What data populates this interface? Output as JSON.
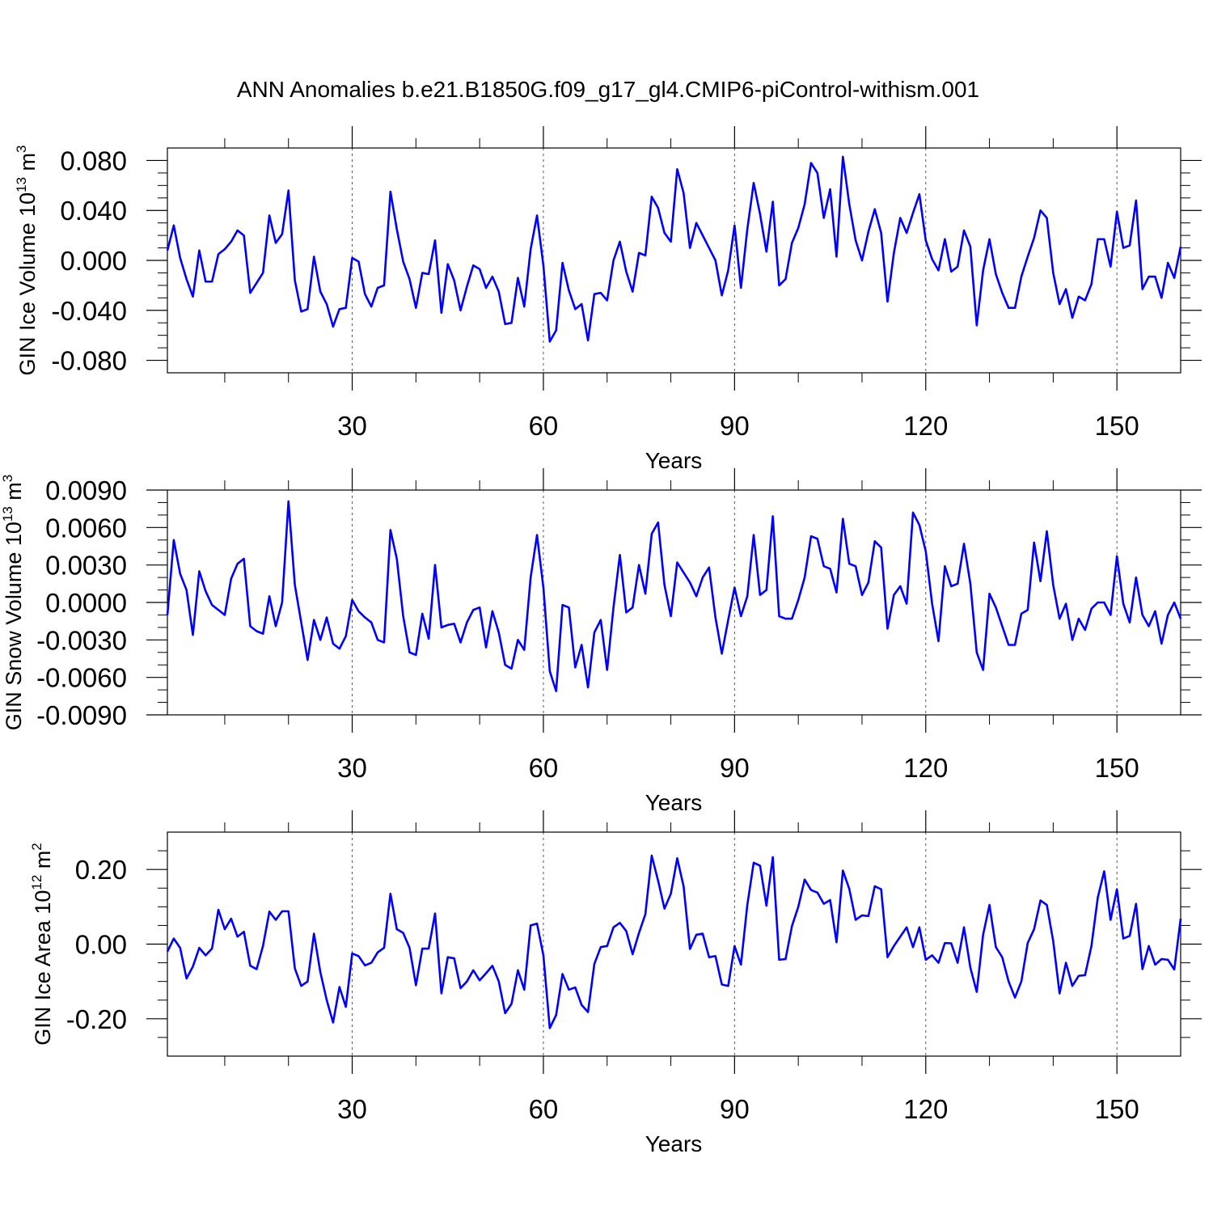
{
  "title": "ANN Anomalies b.e21.B1850G.f09_g17_gl4.CMIP6-piControl-withism.001",
  "line_color": "#0000ff",
  "chart_data": [
    {
      "type": "line",
      "ylabel_main": "GIN Ice Volume 10",
      "ylabel_exp": "13",
      "ylabel_unit": " m",
      "ylabel_unit_exp": "3",
      "xlabel": "Years",
      "xlim": [
        1,
        160
      ],
      "ylim": [
        -0.09,
        0.09
      ],
      "xticks": [
        30,
        60,
        90,
        120,
        150
      ],
      "xtick_labels": [
        "30",
        "60",
        "90",
        "120",
        "150"
      ],
      "yticks": [
        -0.08,
        -0.04,
        0.0,
        0.04,
        0.08
      ],
      "ytick_labels": [
        "-0.080",
        "-0.040",
        "0.000",
        "0.040",
        "0.080"
      ],
      "yminor": [
        -0.07,
        -0.06,
        -0.05,
        -0.03,
        -0.02,
        -0.01,
        0.01,
        0.02,
        0.03,
        0.05,
        0.06,
        0.07
      ],
      "series": [
        {
          "name": "GIN Ice Volume",
          "x_start": 1,
          "values": [
            0.008,
            0.028,
            0.002,
            -0.015,
            -0.029,
            0.008,
            -0.017,
            -0.017,
            0.005,
            0.009,
            0.015,
            0.024,
            0.02,
            -0.026,
            -0.018,
            -0.01,
            0.036,
            0.014,
            0.021,
            0.056,
            -0.016,
            -0.041,
            -0.039,
            0.003,
            -0.025,
            -0.035,
            -0.053,
            -0.039,
            -0.038,
            0.002,
            -0.001,
            -0.027,
            -0.037,
            -0.022,
            -0.02,
            0.055,
            0.025,
            -0.001,
            -0.015,
            -0.038,
            -0.01,
            -0.011,
            0.016,
            -0.042,
            -0.003,
            -0.016,
            -0.04,
            -0.021,
            -0.004,
            -0.007,
            -0.022,
            -0.013,
            -0.025,
            -0.051,
            -0.05,
            -0.014,
            -0.037,
            0.009,
            0.036,
            -0.004,
            -0.065,
            -0.056,
            -0.002,
            -0.024,
            -0.039,
            -0.035,
            -0.064,
            -0.027,
            -0.026,
            -0.032,
            0.0,
            0.015,
            -0.009,
            -0.025,
            0.006,
            0.004,
            0.051,
            0.042,
            0.022,
            0.015,
            0.073,
            0.054,
            0.01,
            0.03,
            0.02,
            0.01,
            0.0,
            -0.028,
            -0.008,
            0.028,
            -0.022,
            0.025,
            0.062,
            0.037,
            0.007,
            0.047,
            -0.02,
            -0.015,
            0.014,
            0.026,
            0.045,
            0.078,
            0.07,
            0.034,
            0.057,
            0.003,
            0.083,
            0.045,
            0.016,
            0.0,
            0.023,
            0.041,
            0.022,
            -0.033,
            0.006,
            0.034,
            0.022,
            0.038,
            0.053,
            0.016,
            0.001,
            -0.008,
            0.017,
            -0.009,
            -0.005,
            0.024,
            0.011,
            -0.052,
            -0.008,
            0.017,
            -0.011,
            -0.026,
            -0.038,
            -0.038,
            -0.013,
            0.003,
            0.018,
            0.04,
            0.034,
            -0.01,
            -0.035,
            -0.023,
            -0.046,
            -0.029,
            -0.032,
            -0.019,
            0.017,
            0.017,
            -0.005,
            0.039,
            0.01,
            0.012,
            0.048,
            -0.023,
            -0.013,
            -0.013,
            -0.03,
            -0.002,
            -0.014,
            0.011
          ]
        }
      ]
    },
    {
      "type": "line",
      "ylabel_main": "GIN Snow Volume 10",
      "ylabel_exp": "13",
      "ylabel_unit": " m",
      "ylabel_unit_exp": "3",
      "xlabel": "Years",
      "xlim": [
        1,
        160
      ],
      "ylim": [
        -0.009,
        0.009
      ],
      "xticks": [
        30,
        60,
        90,
        120,
        150
      ],
      "xtick_labels": [
        "30",
        "60",
        "90",
        "120",
        "150"
      ],
      "yticks": [
        -0.009,
        -0.006,
        -0.003,
        0.0,
        0.003,
        0.006,
        0.009
      ],
      "ytick_labels": [
        "-0.0090",
        "-0.0060",
        "-0.0030",
        "0.0000",
        "0.0030",
        "0.0060",
        "0.0090"
      ],
      "yminor": [
        -0.008,
        -0.007,
        -0.005,
        -0.004,
        -0.002,
        -0.001,
        0.001,
        0.002,
        0.004,
        0.005,
        0.007,
        0.008
      ],
      "series": [
        {
          "name": "GIN Snow Volume",
          "x_start": 1,
          "values": [
            -0.001,
            0.005,
            0.0023,
            0.001,
            -0.0026,
            0.0025,
            0.0009,
            -0.0002,
            -0.0006,
            -0.001,
            0.0019,
            0.0031,
            0.0035,
            -0.0019,
            -0.0023,
            -0.0025,
            0.0005,
            -0.0019,
            0.0,
            0.0081,
            0.0014,
            -0.0016,
            -0.0046,
            -0.0014,
            -0.003,
            -0.0012,
            -0.0033,
            -0.0037,
            -0.0027,
            0.0002,
            -0.0007,
            -0.0012,
            -0.0016,
            -0.003,
            -0.0032,
            0.0058,
            0.0035,
            -0.0011,
            -0.004,
            -0.0042,
            -0.0009,
            -0.0029,
            0.003,
            -0.002,
            -0.0018,
            -0.0017,
            -0.0032,
            -0.0016,
            -0.0006,
            -0.0004,
            -0.0036,
            -0.0007,
            -0.0024,
            -0.005,
            -0.0053,
            -0.003,
            -0.0038,
            0.002,
            0.0054,
            0.0012,
            -0.0055,
            -0.0071,
            -0.0002,
            -0.0004,
            -0.0052,
            -0.0034,
            -0.0068,
            -0.0024,
            -0.0014,
            -0.0054,
            -0.0004,
            0.0038,
            -0.0008,
            -0.0004,
            0.003,
            0.0007,
            0.0055,
            0.0064,
            0.0014,
            -0.0011,
            0.0032,
            0.0024,
            0.0016,
            0.0005,
            0.002,
            0.0028,
            -0.0012,
            -0.0041,
            -0.0014,
            0.0012,
            -0.0011,
            0.0005,
            0.0054,
            0.0006,
            0.001,
            0.0069,
            -0.0011,
            -0.0013,
            -0.0013,
            0.0002,
            0.002,
            0.0053,
            0.0051,
            0.0029,
            0.0027,
            0.0008,
            0.0067,
            0.0031,
            0.0029,
            0.0006,
            0.0016,
            0.0049,
            0.0044,
            -0.0021,
            0.0006,
            0.0013,
            -0.0001,
            0.0072,
            0.0062,
            0.0041,
            -0.0001,
            -0.0031,
            0.0029,
            0.0013,
            0.0015,
            0.0047,
            0.0015,
            -0.004,
            -0.0054,
            0.0007,
            -0.0004,
            -0.0019,
            -0.0034,
            -0.0034,
            -0.0009,
            -0.0006,
            0.0048,
            0.0017,
            0.0057,
            0.0014,
            -0.0013,
            -0.0001,
            -0.003,
            -0.0013,
            -0.0022,
            -0.0005,
            0.0,
            0.0,
            -0.001,
            0.0037,
            -0.0001,
            -0.0016,
            0.002,
            -0.001,
            -0.0019,
            -0.0007,
            -0.0033,
            -0.001,
            0.0,
            -0.0013
          ]
        }
      ]
    },
    {
      "type": "line",
      "ylabel_main": "GIN Ice Area 10",
      "ylabel_exp": "12",
      "ylabel_unit": " m",
      "ylabel_unit_exp": "2",
      "xlabel": "Years",
      "xlim": [
        1,
        160
      ],
      "ylim": [
        -0.3,
        0.3
      ],
      "xticks": [
        30,
        60,
        90,
        120,
        150
      ],
      "xtick_labels": [
        "30",
        "60",
        "90",
        "120",
        "150"
      ],
      "yticks": [
        -0.2,
        0.0,
        0.2
      ],
      "ytick_labels": [
        "-0.20",
        "0.00",
        "0.20"
      ],
      "yminor": [
        -0.25,
        -0.15,
        -0.1,
        -0.05,
        0.05,
        0.1,
        0.15,
        0.25
      ],
      "series": [
        {
          "name": "GIN Ice Area",
          "x_start": 1,
          "values": [
            -0.02,
            0.015,
            -0.01,
            -0.092,
            -0.06,
            -0.01,
            -0.03,
            -0.012,
            0.092,
            0.04,
            0.068,
            0.02,
            0.033,
            -0.058,
            -0.067,
            -0.005,
            0.087,
            0.065,
            0.088,
            0.088,
            -0.065,
            -0.112,
            -0.1,
            0.028,
            -0.075,
            -0.15,
            -0.21,
            -0.115,
            -0.168,
            -0.025,
            -0.032,
            -0.057,
            -0.05,
            -0.022,
            -0.01,
            0.135,
            0.04,
            0.03,
            -0.01,
            -0.11,
            -0.012,
            -0.012,
            0.082,
            -0.132,
            -0.035,
            -0.038,
            -0.118,
            -0.1,
            -0.07,
            -0.097,
            -0.078,
            -0.058,
            -0.1,
            -0.185,
            -0.16,
            -0.07,
            -0.122,
            0.05,
            0.055,
            -0.03,
            -0.225,
            -0.19,
            -0.08,
            -0.122,
            -0.116,
            -0.163,
            -0.182,
            -0.053,
            -0.008,
            -0.005,
            0.045,
            0.057,
            0.035,
            -0.027,
            0.03,
            0.08,
            0.237,
            0.17,
            0.095,
            0.135,
            0.23,
            0.155,
            -0.013,
            0.025,
            0.028,
            -0.035,
            -0.032,
            -0.108,
            -0.112,
            -0.005,
            -0.055,
            0.105,
            0.218,
            0.21,
            0.103,
            0.233,
            -0.042,
            -0.04,
            0.048,
            0.1,
            0.173,
            0.145,
            0.138,
            0.108,
            0.118,
            0.005,
            0.197,
            0.148,
            0.065,
            0.077,
            0.075,
            0.155,
            0.147,
            -0.035,
            -0.005,
            0.02,
            0.045,
            -0.008,
            0.045,
            -0.042,
            -0.03,
            -0.05,
            0.003,
            0.002,
            -0.05,
            0.045,
            -0.063,
            -0.128,
            0.025,
            0.105,
            -0.008,
            -0.035,
            -0.1,
            -0.143,
            -0.1,
            0.003,
            0.04,
            0.117,
            0.105,
            0.008,
            -0.132,
            -0.05,
            -0.112,
            -0.085,
            -0.083,
            -0.005,
            0.125,
            0.195,
            0.065,
            0.147,
            0.015,
            0.022,
            0.108,
            -0.067,
            -0.005,
            -0.055,
            -0.04,
            -0.042,
            -0.068,
            0.068
          ]
        }
      ]
    }
  ]
}
